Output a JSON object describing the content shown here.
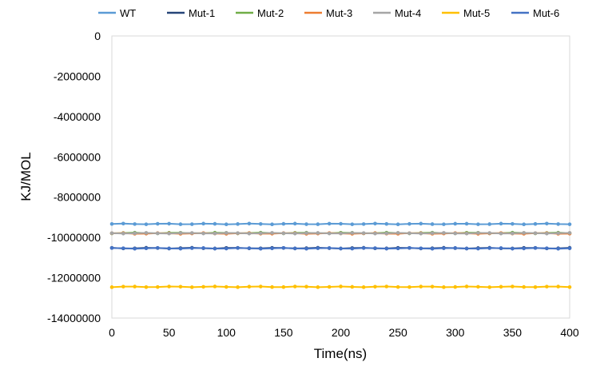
{
  "chart_data": {
    "type": "line",
    "xlabel": "Time(ns)",
    "ylabel": "KJ/MOL",
    "xlim": [
      0,
      400
    ],
    "ylim": [
      -14000000,
      0
    ],
    "xticks": [
      0,
      50,
      100,
      150,
      200,
      250,
      300,
      350,
      400
    ],
    "yticks": [
      0,
      -2000000,
      -4000000,
      -6000000,
      -8000000,
      -10000000,
      -12000000,
      -14000000
    ],
    "grid": false,
    "legend_position": "top",
    "x": [
      0,
      10,
      20,
      30,
      40,
      50,
      60,
      70,
      80,
      90,
      100,
      110,
      120,
      130,
      140,
      150,
      160,
      170,
      180,
      190,
      200,
      210,
      220,
      230,
      240,
      250,
      260,
      270,
      280,
      290,
      300,
      310,
      320,
      330,
      340,
      350,
      360,
      370,
      380,
      390,
      400
    ],
    "series": [
      {
        "name": "WT",
        "color": "#5b9bd5",
        "constant": -9330000
      },
      {
        "name": "Mut-1",
        "color": "#264478",
        "constant": -10530000
      },
      {
        "name": "Mut-2",
        "color": "#70ad47",
        "constant": -9780000
      },
      {
        "name": "Mut-3",
        "color": "#ed7d31",
        "constant": -9800000
      },
      {
        "name": "Mut-4",
        "color": "#a5a5a5",
        "constant": -9790000
      },
      {
        "name": "Mut-5",
        "color": "#ffc000",
        "constant": -12450000
      },
      {
        "name": "Mut-6",
        "color": "#4472c4",
        "constant": -10540000
      }
    ]
  }
}
